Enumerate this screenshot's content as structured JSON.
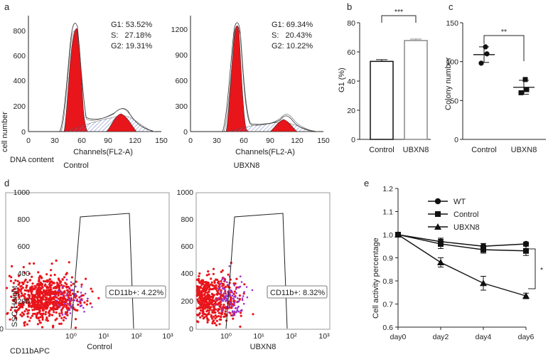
{
  "panel_labels": {
    "a": "a",
    "b": "b",
    "c": "c",
    "d": "d",
    "e": "e"
  },
  "shared": {
    "ylabel_a": "cell number",
    "xlabel_a_left": "DNA content",
    "ylabel_d": "SSC-Height",
    "xlabel_d_left": "CD11bAPC",
    "colors": {
      "red": "#e8151b",
      "purple": "#9b30c8",
      "hatch": "#6a7bc0",
      "gray": "#8a8a8a"
    }
  },
  "chart_data": [
    {
      "id": "a-control",
      "type": "area",
      "title": "Control",
      "xlabel": "Channels(FL2-A)",
      "xlim": [
        0,
        150
      ],
      "x_ticks": [
        "0",
        "30",
        "60",
        "90",
        "120",
        "150"
      ],
      "ylim": [
        0,
        900
      ],
      "y_ticks": [
        "0",
        "200",
        "400",
        "600",
        "800"
      ],
      "annotations": [
        "G1: 53.52%",
        "S:   27.18%",
        "G2: 19.31%"
      ],
      "g1_peak": {
        "x": 54,
        "y": 850
      },
      "g2_peak": {
        "x": 102,
        "y": 200
      }
    },
    {
      "id": "a-ubxn8",
      "type": "area",
      "title": "UBXN8",
      "xlabel": "Channels(FL2-A)",
      "xlim": [
        0,
        150
      ],
      "x_ticks": [
        "0",
        "30",
        "60",
        "90",
        "120",
        "150"
      ],
      "ylim": [
        0,
        1350
      ],
      "y_ticks": [
        "0",
        "300",
        "600",
        "900",
        "1200"
      ],
      "annotations": [
        "G1: 69.34%",
        "S:   20.43%",
        "G2: 10.22%"
      ],
      "g1_peak": {
        "x": 53,
        "y": 1240
      },
      "g2_peak": {
        "x": 103,
        "y": 150
      }
    },
    {
      "id": "b",
      "type": "bar",
      "ylabel": "G1 (%)",
      "categories": [
        "Control",
        "UBXN8"
      ],
      "values": [
        53.5,
        67.8
      ],
      "errors": [
        1.2,
        1.0
      ],
      "ylim": [
        0,
        80
      ],
      "y_ticks": [
        "0",
        "20",
        "40",
        "60",
        "80"
      ],
      "significance": "***"
    },
    {
      "id": "c",
      "type": "scatter",
      "ylabel": "Colony number",
      "categories": [
        "Control",
        "UBXN8"
      ],
      "points": [
        [
          119,
          110,
          98
        ],
        [
          77,
          64,
          60
        ]
      ],
      "means": [
        109,
        67
      ],
      "errors": [
        10,
        9
      ],
      "ylim": [
        0,
        150
      ],
      "y_ticks": [
        "0",
        "50",
        "100",
        "150"
      ],
      "significance": "**"
    },
    {
      "id": "d-control",
      "type": "scatter",
      "title": "Control",
      "ylim": [
        0,
        1000
      ],
      "y_ticks": [
        "0",
        "200",
        "400",
        "600",
        "800",
        "1000"
      ],
      "x_ticks": [
        "10⁰",
        "10¹",
        "10²",
        "10³"
      ],
      "gate_label": "CD11b+: 4.22%",
      "gate_percent": 4.22
    },
    {
      "id": "d-ubxn8",
      "type": "scatter",
      "title": "UBXN8",
      "ylim": [
        0,
        1000
      ],
      "y_ticks": [
        "0",
        "200",
        "400",
        "600",
        "800",
        "1000"
      ],
      "x_ticks": [
        "10⁰",
        "10¹",
        "10²",
        "10³"
      ],
      "gate_label": "CD11b+: 8.32%",
      "gate_percent": 8.32
    },
    {
      "id": "e",
      "type": "line",
      "ylabel": "Cell activity percentage",
      "x": [
        "day0",
        "day2",
        "day4",
        "day6"
      ],
      "ylim": [
        0.6,
        1.2
      ],
      "y_ticks": [
        "0.6",
        "0.7",
        "0.8",
        "0.9",
        "1.0",
        "1.1",
        "1.2"
      ],
      "series": [
        {
          "name": "WT",
          "marker": "circle",
          "values": [
            1.0,
            0.97,
            0.95,
            0.96
          ],
          "errors": [
            0.01,
            0.015,
            0.012,
            0.008
          ]
        },
        {
          "name": "Control",
          "marker": "square",
          "values": [
            1.0,
            0.96,
            0.935,
            0.93
          ],
          "errors": [
            0.01,
            0.02,
            0.015,
            0.02
          ]
        },
        {
          "name": "UBXN8",
          "marker": "triangle",
          "values": [
            1.0,
            0.88,
            0.79,
            0.735
          ],
          "errors": [
            0.01,
            0.02,
            0.03,
            0.012
          ]
        }
      ],
      "significance": "*"
    }
  ]
}
